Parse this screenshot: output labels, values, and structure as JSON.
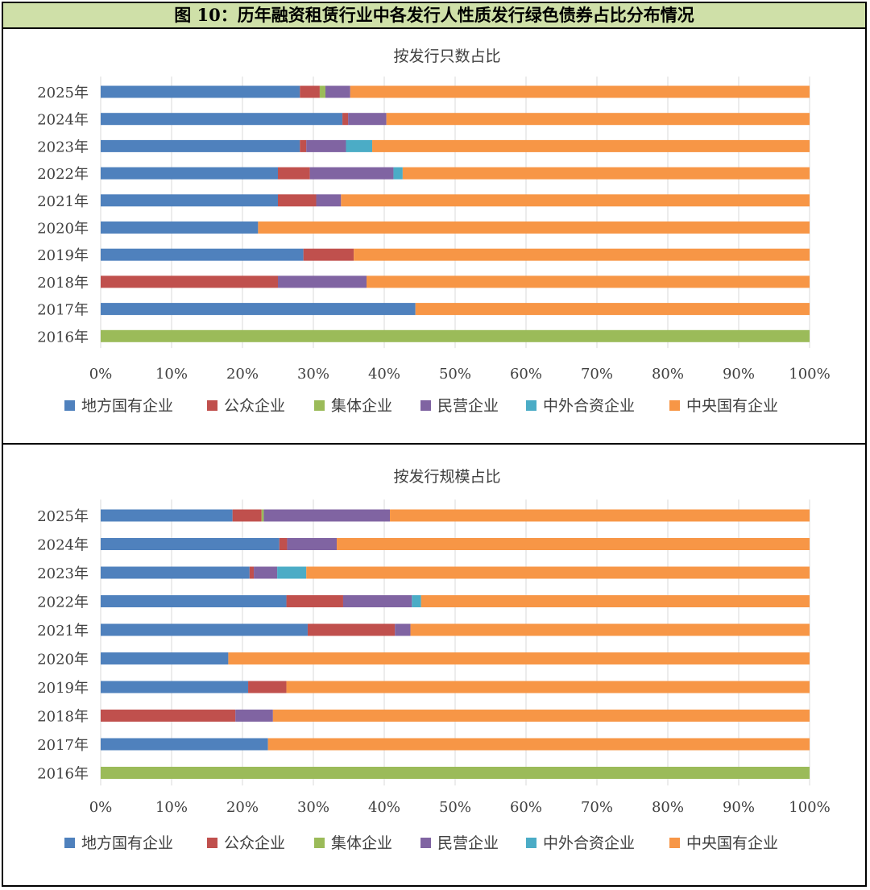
{
  "figure": {
    "title": "图 10：历年融资租赁行业中各发行人性质发行绿色债券占比分布情况"
  },
  "chart_data": [
    {
      "type": "bar",
      "orientation": "horizontal",
      "stacked": "percent",
      "title": "按发行只数占比",
      "categories": [
        "2025年",
        "2024年",
        "2023年",
        "2022年",
        "2021年",
        "2020年",
        "2019年",
        "2018年",
        "2017年",
        "2016年"
      ],
      "series": [
        {
          "name": "地方国有企业",
          "color": "#4f81bd",
          "values": [
            28.1,
            34.1,
            28.1,
            25.0,
            25.0,
            22.2,
            28.6,
            0,
            44.4,
            0
          ]
        },
        {
          "name": "公众企业",
          "color": "#c0504d",
          "values": [
            2.8,
            0.8,
            0.9,
            4.5,
            5.4,
            0,
            7.1,
            25.0,
            0,
            0
          ]
        },
        {
          "name": "集体企业",
          "color": "#9bbb59",
          "values": [
            0.8,
            0,
            0,
            0,
            0,
            0,
            0,
            0,
            0,
            100
          ]
        },
        {
          "name": "民营企业",
          "color": "#8064a2",
          "values": [
            3.5,
            5.4,
            5.6,
            11.8,
            3.5,
            0,
            0,
            12.5,
            0,
            0
          ]
        },
        {
          "name": "中外合资企业",
          "color": "#4bacc6",
          "values": [
            0,
            0,
            3.7,
            1.3,
            0,
            0,
            0,
            0,
            0,
            0
          ]
        },
        {
          "name": "中央国有企业",
          "color": "#f79646",
          "values": [
            64.8,
            59.7,
            61.7,
            57.4,
            66.1,
            77.8,
            64.3,
            62.5,
            55.6,
            0
          ]
        }
      ],
      "xaxis": {
        "min": 0,
        "max": 100,
        "ticks": [
          "0%",
          "10%",
          "20%",
          "30%",
          "40%",
          "50%",
          "60%",
          "70%",
          "80%",
          "90%",
          "100%"
        ]
      },
      "legend": "bottom"
    },
    {
      "type": "bar",
      "orientation": "horizontal",
      "stacked": "percent",
      "title": "按发行规模占比",
      "categories": [
        "2025年",
        "2024年",
        "2023年",
        "2022年",
        "2021年",
        "2020年",
        "2019年",
        "2018年",
        "2017年",
        "2016年"
      ],
      "series": [
        {
          "name": "地方国有企业",
          "color": "#4f81bd",
          "values": [
            18.6,
            25.2,
            21.0,
            26.2,
            29.2,
            18.0,
            20.8,
            0,
            23.6,
            0
          ]
        },
        {
          "name": "公众企业",
          "color": "#c0504d",
          "values": [
            4.1,
            1.1,
            0.6,
            8.0,
            12.3,
            0,
            5.4,
            19.0,
            0,
            0
          ]
        },
        {
          "name": "集体企业",
          "color": "#9bbb59",
          "values": [
            0.3,
            0,
            0,
            0,
            0,
            0,
            0,
            0,
            0,
            100
          ]
        },
        {
          "name": "民营企业",
          "color": "#8064a2",
          "values": [
            17.8,
            7.0,
            3.3,
            9.7,
            2.2,
            0,
            0,
            5.3,
            0,
            0
          ]
        },
        {
          "name": "中外合资企业",
          "color": "#4bacc6",
          "values": [
            0,
            0,
            4.1,
            1.3,
            0,
            0,
            0,
            0,
            0,
            0
          ]
        },
        {
          "name": "中央国有企业",
          "color": "#f79646",
          "values": [
            59.2,
            66.7,
            71.0,
            54.8,
            56.3,
            82.0,
            73.8,
            75.7,
            76.4,
            0
          ]
        }
      ],
      "xaxis": {
        "min": 0,
        "max": 100,
        "ticks": [
          "0%",
          "10%",
          "20%",
          "30%",
          "40%",
          "50%",
          "60%",
          "70%",
          "80%",
          "90%",
          "100%"
        ]
      },
      "legend": "bottom"
    }
  ]
}
